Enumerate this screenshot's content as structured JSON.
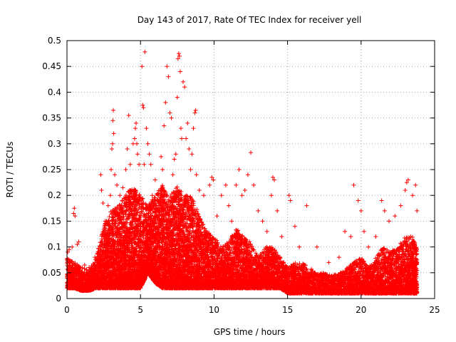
{
  "chart_data": {
    "type": "scatter",
    "title": "Day 143 of 2017, Rate Of TEC Index for receiver yell",
    "xlabel": "GPS time / hours",
    "ylabel": "ROTI / TECUs",
    "xlim": [
      0,
      25
    ],
    "ylim": [
      0,
      0.5
    ],
    "xticks": [
      0,
      5,
      10,
      15,
      20,
      25
    ],
    "xtick_labels": [
      "0",
      "5",
      "10",
      "15",
      "20",
      "25"
    ],
    "yticks": [
      0,
      0.05,
      0.1,
      0.15,
      0.2,
      0.25,
      0.3,
      0.35,
      0.4,
      0.45,
      0.5
    ],
    "ytick_labels": [
      "0",
      "0.05",
      "0.1",
      "0.15",
      "0.2",
      "0.25",
      "0.3",
      "0.35",
      "0.4",
      "0.45",
      "0.5"
    ],
    "grid": true,
    "marker": "+",
    "color": "#ff0000",
    "series": [
      {
        "name": "ROTI",
        "points": [
          [
            0.05,
            0.09
          ],
          [
            0.15,
            0.095
          ],
          [
            0.35,
            0.1
          ],
          [
            0.45,
            0.165
          ],
          [
            0.5,
            0.175
          ],
          [
            0.55,
            0.16
          ],
          [
            0.7,
            0.105
          ],
          [
            0.8,
            0.11
          ],
          [
            1.2,
            0.065
          ],
          [
            1.5,
            0.06
          ],
          [
            1.9,
            0.08
          ],
          [
            2.3,
            0.24
          ],
          [
            2.35,
            0.21
          ],
          [
            2.45,
            0.185
          ],
          [
            2.6,
            0.15
          ],
          [
            2.8,
            0.18
          ],
          [
            2.95,
            0.2
          ],
          [
            3.0,
            0.25
          ],
          [
            3.05,
            0.29
          ],
          [
            3.1,
            0.3
          ],
          [
            3.12,
            0.345
          ],
          [
            3.15,
            0.365
          ],
          [
            3.18,
            0.32
          ],
          [
            3.25,
            0.24
          ],
          [
            3.4,
            0.22
          ],
          [
            3.6,
            0.2
          ],
          [
            3.8,
            0.215
          ],
          [
            4.0,
            0.25
          ],
          [
            4.1,
            0.29
          ],
          [
            4.2,
            0.355
          ],
          [
            4.3,
            0.26
          ],
          [
            4.5,
            0.3
          ],
          [
            4.6,
            0.31
          ],
          [
            4.65,
            0.33
          ],
          [
            4.7,
            0.34
          ],
          [
            4.75,
            0.3
          ],
          [
            4.8,
            0.28
          ],
          [
            4.9,
            0.26
          ],
          [
            5.1,
            0.45
          ],
          [
            5.15,
            0.375
          ],
          [
            5.2,
            0.37
          ],
          [
            5.25,
            0.26
          ],
          [
            5.3,
            0.478
          ],
          [
            5.4,
            0.33
          ],
          [
            5.5,
            0.3
          ],
          [
            5.6,
            0.28
          ],
          [
            5.7,
            0.26
          ],
          [
            5.8,
            0.2
          ],
          [
            6.0,
            0.23
          ],
          [
            6.2,
            0.2
          ],
          [
            6.4,
            0.275
          ],
          [
            6.5,
            0.25
          ],
          [
            6.6,
            0.335
          ],
          [
            6.7,
            0.38
          ],
          [
            6.8,
            0.45
          ],
          [
            6.9,
            0.43
          ],
          [
            7.0,
            0.36
          ],
          [
            7.1,
            0.35
          ],
          [
            7.2,
            0.24
          ],
          [
            7.3,
            0.27
          ],
          [
            7.4,
            0.28
          ],
          [
            7.5,
            0.39
          ],
          [
            7.55,
            0.465
          ],
          [
            7.6,
            0.475
          ],
          [
            7.65,
            0.47
          ],
          [
            7.7,
            0.44
          ],
          [
            7.75,
            0.33
          ],
          [
            7.8,
            0.31
          ],
          [
            7.9,
            0.42
          ],
          [
            8.0,
            0.41
          ],
          [
            8.1,
            0.31
          ],
          [
            8.2,
            0.34
          ],
          [
            8.3,
            0.29
          ],
          [
            8.4,
            0.25
          ],
          [
            8.5,
            0.28
          ],
          [
            8.6,
            0.33
          ],
          [
            8.7,
            0.36
          ],
          [
            8.75,
            0.365
          ],
          [
            8.8,
            0.24
          ],
          [
            9.0,
            0.21
          ],
          [
            9.3,
            0.2
          ],
          [
            9.7,
            0.22
          ],
          [
            9.85,
            0.235
          ],
          [
            9.95,
            0.23
          ],
          [
            10.2,
            0.16
          ],
          [
            10.5,
            0.2
          ],
          [
            10.8,
            0.22
          ],
          [
            11.0,
            0.18
          ],
          [
            11.2,
            0.15
          ],
          [
            11.5,
            0.22
          ],
          [
            11.7,
            0.25
          ],
          [
            11.9,
            0.2
          ],
          [
            12.1,
            0.21
          ],
          [
            12.3,
            0.24
          ],
          [
            12.5,
            0.283
          ],
          [
            12.7,
            0.22
          ],
          [
            13.0,
            0.17
          ],
          [
            13.3,
            0.15
          ],
          [
            13.6,
            0.13
          ],
          [
            13.9,
            0.2
          ],
          [
            14.0,
            0.235
          ],
          [
            14.1,
            0.23
          ],
          [
            14.3,
            0.17
          ],
          [
            14.6,
            0.12
          ],
          [
            15.1,
            0.2
          ],
          [
            15.2,
            0.19
          ],
          [
            15.5,
            0.14
          ],
          [
            15.8,
            0.1
          ],
          [
            16.3,
            0.18
          ],
          [
            17.0,
            0.1
          ],
          [
            17.8,
            0.07
          ],
          [
            18.5,
            0.08
          ],
          [
            18.9,
            0.13
          ],
          [
            19.3,
            0.12
          ],
          [
            19.5,
            0.22
          ],
          [
            19.8,
            0.19
          ],
          [
            20.0,
            0.17
          ],
          [
            20.2,
            0.13
          ],
          [
            20.5,
            0.1
          ],
          [
            21.0,
            0.12
          ],
          [
            21.4,
            0.19
          ],
          [
            21.6,
            0.17
          ],
          [
            21.9,
            0.15
          ],
          [
            22.3,
            0.16
          ],
          [
            22.7,
            0.18
          ],
          [
            23.0,
            0.21
          ],
          [
            23.1,
            0.225
          ],
          [
            23.2,
            0.23
          ],
          [
            23.5,
            0.2
          ],
          [
            23.7,
            0.22
          ],
          [
            23.8,
            0.17
          ]
        ]
      }
    ],
    "background_density": {
      "description_free": true,
      "envelope": [
        [
          0.0,
          0.02,
          0.08
        ],
        [
          0.5,
          0.02,
          0.07
        ],
        [
          1.0,
          0.015,
          0.06
        ],
        [
          1.5,
          0.015,
          0.055
        ],
        [
          2.0,
          0.02,
          0.08
        ],
        [
          2.5,
          0.02,
          0.14
        ],
        [
          3.0,
          0.02,
          0.17
        ],
        [
          3.5,
          0.02,
          0.18
        ],
        [
          4.0,
          0.02,
          0.2
        ],
        [
          4.5,
          0.02,
          0.22
        ],
        [
          5.0,
          0.02,
          0.2
        ],
        [
          5.5,
          0.05,
          0.18
        ],
        [
          6.0,
          0.03,
          0.2
        ],
        [
          6.5,
          0.02,
          0.22
        ],
        [
          7.0,
          0.02,
          0.2
        ],
        [
          7.5,
          0.02,
          0.22
        ],
        [
          8.0,
          0.02,
          0.2
        ],
        [
          8.5,
          0.02,
          0.2
        ],
        [
          9.0,
          0.02,
          0.16
        ],
        [
          9.5,
          0.02,
          0.13
        ],
        [
          10.0,
          0.02,
          0.12
        ],
        [
          10.5,
          0.02,
          0.1
        ],
        [
          11.0,
          0.02,
          0.11
        ],
        [
          11.5,
          0.02,
          0.14
        ],
        [
          12.0,
          0.02,
          0.12
        ],
        [
          12.5,
          0.02,
          0.11
        ],
        [
          13.0,
          0.02,
          0.08
        ],
        [
          13.5,
          0.02,
          0.1
        ],
        [
          14.0,
          0.02,
          0.1
        ],
        [
          14.5,
          0.02,
          0.08
        ],
        [
          15.0,
          0.01,
          0.06
        ],
        [
          15.5,
          0.01,
          0.07
        ],
        [
          16.0,
          0.01,
          0.07
        ],
        [
          16.5,
          0.01,
          0.06
        ],
        [
          17.0,
          0.01,
          0.05
        ],
        [
          17.5,
          0.01,
          0.05
        ],
        [
          18.0,
          0.01,
          0.045
        ],
        [
          18.5,
          0.01,
          0.05
        ],
        [
          19.0,
          0.01,
          0.06
        ],
        [
          19.5,
          0.01,
          0.07
        ],
        [
          20.0,
          0.01,
          0.08
        ],
        [
          20.5,
          0.01,
          0.06
        ],
        [
          21.0,
          0.01,
          0.08
        ],
        [
          21.5,
          0.01,
          0.1
        ],
        [
          22.0,
          0.01,
          0.09
        ],
        [
          22.5,
          0.01,
          0.1
        ],
        [
          23.0,
          0.01,
          0.12
        ],
        [
          23.5,
          0.01,
          0.12
        ],
        [
          23.8,
          0.01,
          0.1
        ]
      ]
    }
  }
}
